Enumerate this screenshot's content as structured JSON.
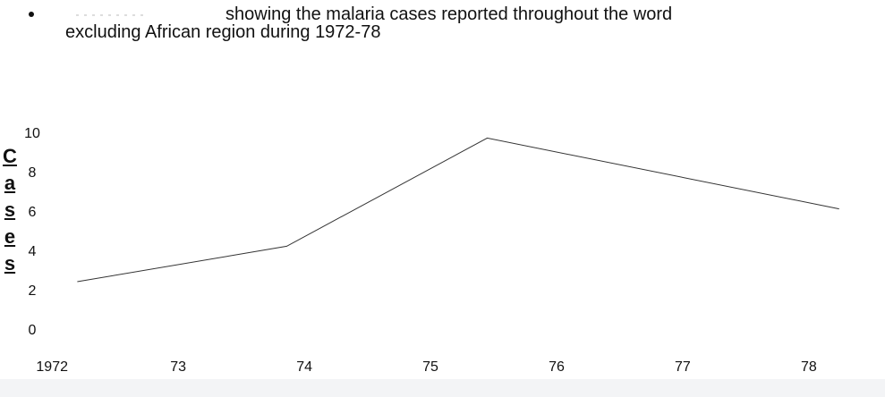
{
  "chart_data": {
    "type": "line",
    "title": "showing the malaria cases reported throughout the word",
    "subtitle": "excluding African region during 1972-78",
    "y_label": "Cases",
    "x": [
      1972.2,
      1973.86,
      1975.45,
      1978.24
    ],
    "series": [
      {
        "name": "Cases",
        "color": "#333333",
        "values": [
          2.5,
          4.3,
          9.8,
          6.2
        ]
      }
    ],
    "xlim": [
      1971.8,
      1978.54
    ],
    "xticks": [
      1972,
      {
        "value": 1973,
        "label": "73"
      },
      {
        "value": 1974,
        "label": "74"
      },
      {
        "value": 1975,
        "label": "75"
      },
      {
        "value": 1976,
        "label": "76"
      },
      {
        "value": 1977,
        "label": "77"
      },
      {
        "value": 1978,
        "label": "78"
      }
    ],
    "ylim": [
      0,
      10
    ],
    "yticks": [
      0,
      2,
      4,
      6,
      8,
      10
    ],
    "grid": false
  }
}
